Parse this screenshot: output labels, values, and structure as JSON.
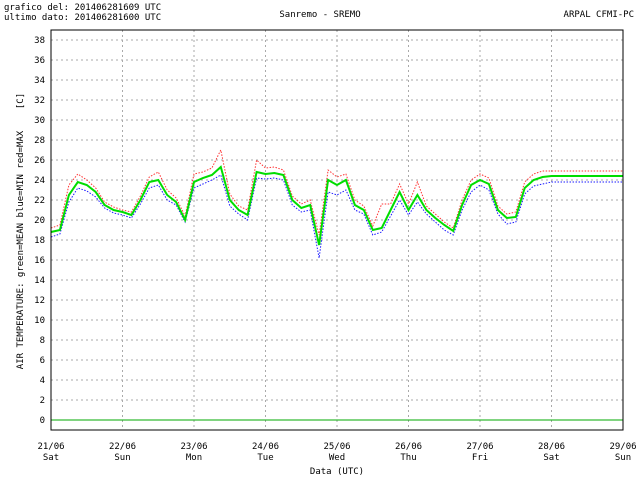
{
  "header": {
    "line1": "grafico del: 201406281609 UTC",
    "line2": "ultimo dato: 201406281600 UTC",
    "station": "Sanremo - SREMO",
    "source": "ARPAL CFMI-PC"
  },
  "colors": {
    "mean": "#00dd00",
    "min": "#1a1aff",
    "max": "#ff3333",
    "grid": "#aaaaaa",
    "zero_line": "#00aa00"
  },
  "chart_data": {
    "type": "line",
    "title": "Sanremo - SREMO",
    "xlabel": "Data (UTC)",
    "ylabel": "AIR TEMPERATURE: green=MEAN  blue=MIN  red=MAX",
    "yunit": "[C]",
    "ylim": [
      -1,
      39
    ],
    "yticks": [
      0,
      2,
      4,
      6,
      8,
      10,
      12,
      14,
      16,
      18,
      20,
      22,
      24,
      26,
      28,
      30,
      32,
      34,
      36,
      38
    ],
    "xlim": [
      "2014-06-21",
      "2014-06-29"
    ],
    "xticks": [
      {
        "date": "21/06",
        "day": "Sat"
      },
      {
        "date": "22/06",
        "day": "Sun"
      },
      {
        "date": "23/06",
        "day": "Mon"
      },
      {
        "date": "24/06",
        "day": "Tue"
      },
      {
        "date": "25/06",
        "day": "Wed"
      },
      {
        "date": "26/06",
        "day": "Thu"
      },
      {
        "date": "27/06",
        "day": "Fri"
      },
      {
        "date": "28/06",
        "day": "Sat"
      },
      {
        "date": "29/06",
        "day": "Sun"
      }
    ],
    "grid": true,
    "x_hours_from_start": [
      0,
      3,
      6,
      9,
      12,
      15,
      18,
      21,
      24,
      27,
      30,
      33,
      36,
      39,
      42,
      45,
      48,
      51,
      54,
      57,
      60,
      63,
      66,
      69,
      72,
      75,
      78,
      81,
      84,
      87,
      90,
      93,
      96,
      99,
      102,
      105,
      108,
      111,
      114,
      117,
      120,
      123,
      126,
      129,
      132,
      135,
      138,
      141,
      144,
      147,
      150,
      153,
      156,
      159,
      162,
      165,
      168,
      171,
      174,
      177,
      180,
      183,
      186,
      189,
      192
    ],
    "series": [
      {
        "name": "MEAN",
        "color": "#00dd00",
        "values": [
          18.8,
          19.0,
          22.5,
          23.8,
          23.5,
          22.8,
          21.5,
          21.0,
          20.8,
          20.5,
          22.0,
          23.8,
          24.0,
          22.5,
          21.8,
          20.0,
          23.8,
          24.2,
          24.5,
          25.3,
          22.0,
          21.0,
          20.5,
          24.8,
          24.6,
          24.7,
          24.5,
          22.0,
          21.2,
          21.5,
          17.5,
          24.0,
          23.5,
          24.0,
          21.5,
          21.0,
          19.0,
          19.2,
          21.0,
          22.8,
          21.0,
          22.5,
          21.0,
          20.2,
          19.5,
          18.9,
          21.5,
          23.5,
          24.0,
          23.6,
          21.0,
          20.2,
          20.3,
          23.2,
          24.0,
          24.3,
          24.4,
          24.4,
          24.4,
          24.4,
          24.4,
          24.4,
          24.4,
          24.4,
          24.4
        ]
      },
      {
        "name": "MIN",
        "color": "#1a1aff",
        "values": [
          18.3,
          18.6,
          21.8,
          23.2,
          22.9,
          22.3,
          21.2,
          20.7,
          20.5,
          20.2,
          21.6,
          23.2,
          23.5,
          22.0,
          21.5,
          19.8,
          23.2,
          23.6,
          24.0,
          24.5,
          21.4,
          20.6,
          20.0,
          24.2,
          24.1,
          24.2,
          24.0,
          21.5,
          20.8,
          21.0,
          16.2,
          22.8,
          22.5,
          23.0,
          21.0,
          20.6,
          18.5,
          18.8,
          20.4,
          22.0,
          20.5,
          21.8,
          20.6,
          19.8,
          19.0,
          18.5,
          21.0,
          22.8,
          23.5,
          23.0,
          20.6,
          19.6,
          19.8,
          22.6,
          23.4,
          23.6,
          23.8,
          23.8,
          23.8,
          23.8,
          23.8,
          23.8,
          23.8,
          23.8,
          23.8
        ]
      },
      {
        "name": "MAX",
        "color": "#ff3333",
        "values": [
          19.2,
          19.5,
          23.5,
          24.6,
          24.0,
          23.2,
          21.8,
          21.3,
          21.0,
          20.8,
          22.4,
          24.3,
          24.8,
          23.0,
          22.2,
          20.4,
          24.6,
          24.8,
          25.2,
          27.0,
          22.6,
          21.4,
          21.0,
          26.0,
          25.2,
          25.3,
          25.0,
          22.4,
          21.6,
          22.0,
          18.5,
          25.0,
          24.3,
          24.6,
          22.0,
          21.4,
          19.4,
          21.6,
          21.6,
          23.6,
          21.6,
          23.8,
          21.4,
          20.6,
          19.8,
          19.2,
          22.0,
          24.0,
          24.6,
          24.2,
          21.4,
          20.6,
          20.8,
          23.8,
          24.6,
          24.9,
          24.9,
          24.9,
          24.9,
          24.9,
          24.9,
          24.9,
          24.9,
          24.9,
          24.9
        ]
      }
    ]
  }
}
